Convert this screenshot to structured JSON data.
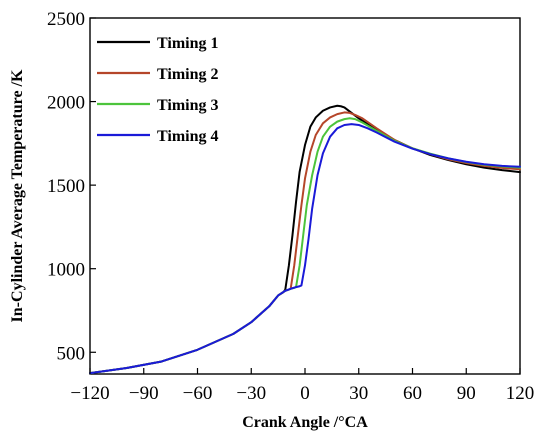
{
  "chart_data": {
    "type": "line",
    "title": "",
    "xlabel": "Crank Angle /°CA",
    "ylabel": "In-Cylinder Average Temperature /K",
    "xlim": [
      -120,
      120
    ],
    "ylim": [
      370,
      2500
    ],
    "x_ticks": [
      -120,
      -90,
      -60,
      -30,
      0,
      30,
      60,
      90,
      120
    ],
    "x_tick_labels": [
      "−120",
      "−90",
      "−60",
      "−30",
      "0",
      "30",
      "60",
      "90",
      "120"
    ],
    "y_ticks": [
      500,
      1000,
      1500,
      2000,
      2500
    ],
    "y_tick_labels": [
      "500",
      "1000",
      "1500",
      "2000",
      "2500"
    ],
    "grid": false,
    "legend_position": "top-left",
    "series": [
      {
        "name": "Timing 1",
        "color": "#000000",
        "x": [
          -120,
          -100,
          -80,
          -60,
          -40,
          -30,
          -20,
          -15,
          -12,
          -11,
          -9,
          -7,
          -5,
          -3,
          0,
          3,
          6,
          10,
          14,
          18,
          20,
          22,
          25,
          30,
          40,
          50,
          60,
          70,
          80,
          90,
          100,
          110,
          120
        ],
        "y": [
          375,
          405,
          445,
          515,
          610,
          680,
          775,
          840,
          860,
          875,
          1020,
          1200,
          1400,
          1580,
          1740,
          1850,
          1905,
          1945,
          1965,
          1975,
          1972,
          1965,
          1940,
          1900,
          1830,
          1770,
          1720,
          1680,
          1650,
          1625,
          1605,
          1590,
          1578
        ]
      },
      {
        "name": "Timing 2",
        "color": "#b5462a",
        "x": [
          -120,
          -100,
          -80,
          -60,
          -40,
          -30,
          -20,
          -15,
          -11,
          -9,
          -8,
          -6,
          -4,
          -2,
          0,
          3,
          6,
          10,
          14,
          18,
          22,
          25,
          28,
          32,
          40,
          50,
          60,
          70,
          80,
          90,
          100,
          110,
          120
        ],
        "y": [
          375,
          405,
          445,
          515,
          610,
          680,
          775,
          840,
          868,
          875,
          880,
          1020,
          1200,
          1380,
          1540,
          1700,
          1800,
          1870,
          1905,
          1925,
          1935,
          1932,
          1920,
          1900,
          1840,
          1770,
          1720,
          1685,
          1655,
          1632,
          1615,
          1603,
          1595
        ]
      },
      {
        "name": "Timing 3",
        "color": "#4cc43c",
        "x": [
          -120,
          -100,
          -80,
          -60,
          -40,
          -30,
          -20,
          -15,
          -11,
          -8,
          -6,
          -5,
          -3,
          -1,
          1,
          4,
          7,
          10,
          14,
          18,
          22,
          25,
          28,
          32,
          40,
          50,
          60,
          70,
          80,
          90,
          100,
          110,
          120
        ],
        "y": [
          375,
          405,
          445,
          515,
          610,
          680,
          775,
          840,
          868,
          880,
          885,
          890,
          1020,
          1200,
          1380,
          1560,
          1700,
          1790,
          1850,
          1880,
          1895,
          1900,
          1895,
          1875,
          1825,
          1765,
          1720,
          1688,
          1660,
          1638,
          1622,
          1612,
          1605
        ]
      },
      {
        "name": "Timing 4",
        "color": "#1a1ad8",
        "x": [
          -120,
          -100,
          -80,
          -60,
          -40,
          -30,
          -20,
          -15,
          -11,
          -8,
          -5,
          -3,
          -2,
          0,
          2,
          4,
          7,
          10,
          14,
          18,
          22,
          26,
          30,
          35,
          40,
          50,
          60,
          70,
          80,
          90,
          100,
          110,
          120
        ],
        "y": [
          375,
          405,
          445,
          515,
          610,
          680,
          775,
          840,
          868,
          880,
          890,
          895,
          900,
          1020,
          1180,
          1360,
          1560,
          1690,
          1790,
          1840,
          1860,
          1865,
          1860,
          1840,
          1815,
          1760,
          1718,
          1685,
          1660,
          1640,
          1625,
          1615,
          1610
        ]
      }
    ]
  }
}
